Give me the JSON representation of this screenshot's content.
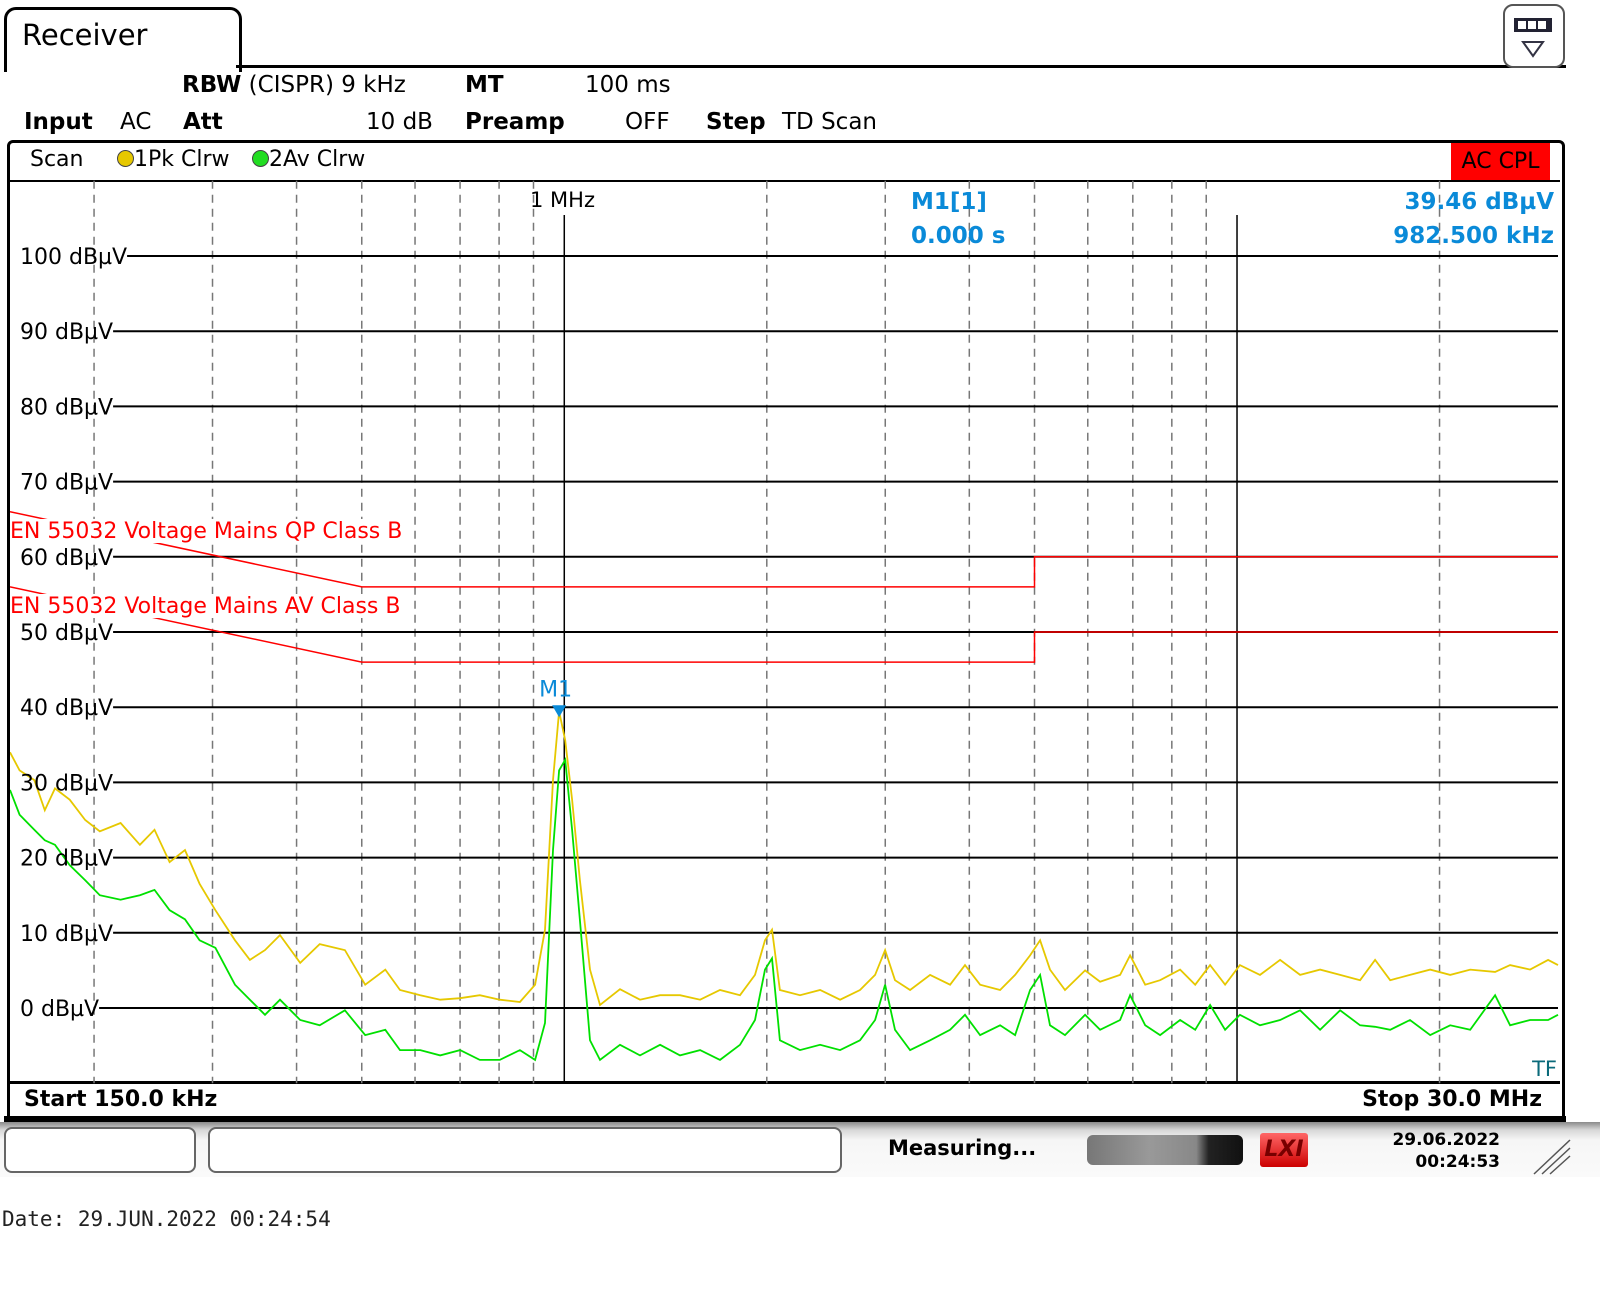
{
  "header": {
    "tab_title": "Receiver",
    "menu_icon": "toolbar-dropdown-icon"
  },
  "params": {
    "rbw_label": "RBW",
    "rbw_value": "(CISPR) 9 kHz",
    "mt_label": "MT",
    "mt_value": "100 ms",
    "input_label": "Input",
    "input_value": "AC",
    "att_label": "Att",
    "att_value": "10 dB",
    "preamp_label": "Preamp",
    "preamp_value": "OFF",
    "step_label": "Step",
    "step_value": "TD Scan"
  },
  "legend": {
    "scan": "Scan",
    "trace1": "1Pk Clrw",
    "trace2": "2Av Clrw",
    "badge": "AC CPL"
  },
  "marker": {
    "label": "M1",
    "name": "M1[1]",
    "level": "39.46 dBµV",
    "time": "0.000 s",
    "freq": "982.500 kHz"
  },
  "freq_annotation": "1 MHz",
  "tf_label": "TF",
  "start_label": "Start 150.0 kHz",
  "stop_label": "Stop 30.0 MHz",
  "status": {
    "measuring": "Measuring...",
    "lxi": "LXI",
    "date": "29.06.2022",
    "time": "00:24:53"
  },
  "footer_date": "Date: 29.JUN.2022   00:24:54",
  "colors": {
    "pk": "#e6c800",
    "av": "#00e000",
    "limit": "#ff0000",
    "marker": "#0a8ad8",
    "badge": "#ff0000"
  },
  "chart_data": {
    "type": "line",
    "xscale": "log",
    "xunit": "MHz",
    "xlim": [
      0.15,
      30
    ],
    "ylim": [
      -10,
      110
    ],
    "yunit": "dBµV",
    "yticks": [
      0,
      10,
      20,
      30,
      40,
      50,
      60,
      70,
      80,
      90,
      100
    ],
    "ytick_labels": [
      "0 dBµV",
      "10 dBµV",
      "20 dBµV",
      "30 dBµV",
      "40 dBµV",
      "50 dBµV",
      "60 dBµV",
      "70 dBµV",
      "80 dBµV",
      "90 dBµV",
      "100 dBµV"
    ],
    "grid": true,
    "limits": [
      {
        "name": "EN 55032 Voltage Mains QP Class B",
        "points": [
          [
            0.15,
            66
          ],
          [
            0.5,
            56
          ],
          [
            5,
            56
          ],
          [
            5,
            60
          ],
          [
            30,
            60
          ]
        ]
      },
      {
        "name": "EN 55032 Voltage Mains AV Class B",
        "points": [
          [
            0.15,
            56
          ],
          [
            0.5,
            46
          ],
          [
            5,
            46
          ],
          [
            5,
            50
          ],
          [
            30,
            50
          ]
        ]
      }
    ],
    "marker": {
      "freq": 0.9825,
      "level": 39.46
    },
    "x": [
      0.15,
      0.155,
      0.163,
      0.169,
      0.175,
      0.184,
      0.194,
      0.204,
      0.219,
      0.234,
      0.246,
      0.259,
      0.273,
      0.287,
      0.303,
      0.324,
      0.341,
      0.359,
      0.378,
      0.405,
      0.433,
      0.472,
      0.506,
      0.542,
      0.57,
      0.611,
      0.654,
      0.7,
      0.749,
      0.802,
      0.859,
      0.905,
      0.936,
      0.962,
      0.9825,
      1.003,
      1.027,
      1.055,
      1.092,
      1.13,
      1.21,
      1.296,
      1.388,
      1.486,
      1.592,
      1.704,
      1.825,
      1.921,
      1.988,
      2.036,
      2.092,
      2.241,
      2.4,
      2.57,
      2.752,
      2.897,
      2.998,
      3.102,
      3.266,
      3.498,
      3.745,
      3.942,
      4.15,
      4.445,
      4.678,
      4.925,
      5.096,
      5.273,
      5.551,
      5.946,
      6.259,
      6.703,
      6.936,
      7.302,
      7.686,
      8.231,
      8.666,
      9.121,
      9.6,
      10.1,
      10.82,
      11.59,
      12.41,
      13.29,
      14.23,
      15.24,
      16.04,
      16.89,
      18.08,
      19.37,
      20.74,
      22.21,
      24.19,
      25.46,
      27.27,
      29.0,
      30.0
    ],
    "series": [
      {
        "name": "1Pk Clrw",
        "values": [
          34.0,
          31.6,
          30.3,
          26.3,
          29.2,
          27.7,
          25.0,
          23.5,
          24.6,
          21.7,
          23.7,
          19.4,
          21.0,
          16.5,
          13.0,
          9.0,
          6.4,
          7.7,
          9.7,
          6.0,
          8.5,
          7.7,
          3.1,
          5.1,
          2.4,
          1.7,
          1.1,
          1.3,
          1.7,
          1.1,
          0.8,
          3.1,
          10.4,
          30.3,
          39.46,
          35.6,
          27.7,
          17.0,
          5.1,
          0.4,
          2.5,
          1.1,
          1.7,
          1.7,
          1.1,
          2.4,
          1.7,
          4.4,
          9.0,
          10.4,
          2.4,
          1.7,
          2.4,
          1.1,
          2.4,
          4.4,
          7.7,
          3.7,
          2.4,
          4.4,
          3.1,
          5.7,
          3.1,
          2.4,
          4.4,
          7.0,
          9.0,
          5.1,
          2.4,
          5.0,
          3.5,
          4.4,
          7.0,
          3.1,
          3.7,
          5.1,
          3.1,
          5.7,
          3.1,
          5.7,
          4.4,
          6.4,
          4.4,
          5.1,
          4.4,
          3.7,
          6.4,
          3.7,
          4.4,
          5.1,
          4.4,
          5.1,
          4.8,
          5.7,
          5.1,
          6.4,
          5.7
        ]
      },
      {
        "name": "2Av Clrw",
        "values": [
          29.0,
          25.7,
          23.7,
          22.3,
          21.7,
          19.0,
          17.0,
          15.0,
          14.4,
          15.0,
          15.7,
          13.0,
          11.8,
          9.0,
          8.0,
          3.1,
          1.1,
          -0.9,
          1.1,
          -1.6,
          -2.3,
          -0.3,
          -3.6,
          -2.9,
          -5.6,
          -5.6,
          -6.3,
          -5.6,
          -6.9,
          -6.9,
          -5.6,
          -6.9,
          -2.0,
          21.0,
          31.6,
          33.0,
          23.7,
          11.7,
          -4.3,
          -6.9,
          -4.9,
          -6.3,
          -4.9,
          -6.3,
          -5.6,
          -6.9,
          -4.9,
          -1.6,
          5.1,
          6.6,
          -4.3,
          -5.6,
          -4.9,
          -5.6,
          -4.3,
          -1.6,
          3.1,
          -2.9,
          -5.6,
          -4.3,
          -2.9,
          -0.9,
          -3.6,
          -2.3,
          -3.6,
          2.4,
          4.4,
          -2.3,
          -3.6,
          -0.9,
          -2.9,
          -1.6,
          1.7,
          -2.3,
          -3.6,
          -1.6,
          -2.9,
          0.4,
          -2.9,
          -0.9,
          -2.3,
          -1.6,
          -0.3,
          -2.9,
          -0.3,
          -2.3,
          -2.5,
          -2.9,
          -1.6,
          -3.6,
          -2.3,
          -2.9,
          1.7,
          -2.3,
          -1.6,
          -1.6,
          -0.9
        ]
      }
    ]
  }
}
